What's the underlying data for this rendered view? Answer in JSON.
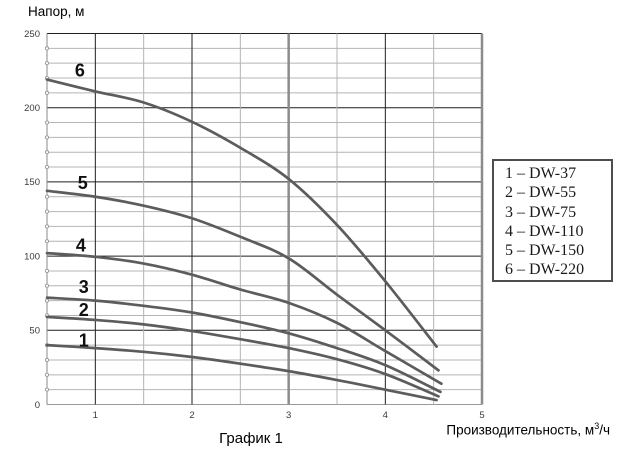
{
  "page": {
    "caption": "График 1"
  },
  "axes": {
    "y_title": "Напор, м",
    "x_title_prefix": "Производительность, м",
    "x_title_sup": "3",
    "x_title_suffix": "/ч"
  },
  "legend": {
    "items": [
      {
        "text": "1 – DW-37"
      },
      {
        "text": "2 – DW-55"
      },
      {
        "text": "3 – DW-75"
      },
      {
        "text": "4 – DW-110"
      },
      {
        "text": "5 – DW-150"
      },
      {
        "text": "6 – DW-220"
      }
    ]
  },
  "chart_data": {
    "type": "line",
    "title": "График 1",
    "xlabel": "Производительность, м³/ч",
    "ylabel": "Напор, м",
    "xlim": [
      0.5,
      5
    ],
    "ylim": [
      0,
      250
    ],
    "x_major_ticks": [
      1,
      2,
      3,
      4,
      5
    ],
    "x_minor_step": 0.5,
    "y_major_step": 50,
    "y_minor_step": 10,
    "grid": true,
    "legend_position": "right-outside",
    "emphasized_vlines": [
      3,
      5
    ],
    "curve_color": "#5c5c5c",
    "series": [
      {
        "label": "1",
        "name": "DW-37",
        "label_at": [
          0.88,
          43.5
        ],
        "points": [
          [
            0.5,
            40
          ],
          [
            1,
            38
          ],
          [
            1.5,
            35.5
          ],
          [
            2,
            32
          ],
          [
            2.5,
            27.5
          ],
          [
            3,
            22.5
          ],
          [
            3.5,
            16.5
          ],
          [
            4,
            10
          ],
          [
            4.53,
            3
          ]
        ]
      },
      {
        "label": "2",
        "name": "DW-55",
        "label_at": [
          0.88,
          64
        ],
        "points": [
          [
            0.5,
            59
          ],
          [
            1,
            57
          ],
          [
            1.5,
            54
          ],
          [
            2,
            49.5
          ],
          [
            2.5,
            44
          ],
          [
            3,
            38
          ],
          [
            3.5,
            30.5
          ],
          [
            4,
            20.5
          ],
          [
            4.55,
            5.5
          ]
        ]
      },
      {
        "label": "3",
        "name": "DW-75",
        "label_at": [
          0.88,
          79.5
        ],
        "points": [
          [
            0.5,
            72
          ],
          [
            1,
            70
          ],
          [
            1.5,
            66.5
          ],
          [
            2,
            62
          ],
          [
            2.5,
            55.5
          ],
          [
            3,
            48
          ],
          [
            3.5,
            38
          ],
          [
            4,
            26.5
          ],
          [
            4.57,
            8.5
          ]
        ]
      },
      {
        "label": "4",
        "name": "DW-110",
        "label_at": [
          0.85,
          107.5
        ],
        "points": [
          [
            0.5,
            102
          ],
          [
            1,
            99.5
          ],
          [
            1.5,
            95
          ],
          [
            2,
            87.5
          ],
          [
            2.5,
            77.5
          ],
          [
            3,
            68.5
          ],
          [
            3.5,
            55
          ],
          [
            4,
            36
          ],
          [
            4.58,
            14
          ]
        ]
      },
      {
        "label": "5",
        "name": "DW-150",
        "label_at": [
          0.87,
          149.5
        ],
        "points": [
          [
            0.5,
            144
          ],
          [
            1,
            140
          ],
          [
            1.5,
            134
          ],
          [
            2,
            125.5
          ],
          [
            2.5,
            113
          ],
          [
            3,
            98.5
          ],
          [
            3.5,
            74
          ],
          [
            4,
            50
          ],
          [
            4.55,
            23
          ]
        ]
      },
      {
        "label": "6",
        "name": "DW-220",
        "label_at": [
          0.84,
          225.5
        ],
        "points": [
          [
            0.5,
            219
          ],
          [
            1,
            211
          ],
          [
            1.5,
            203.5
          ],
          [
            2,
            190.5
          ],
          [
            2.5,
            173
          ],
          [
            3,
            152
          ],
          [
            3.5,
            121
          ],
          [
            4,
            83
          ],
          [
            4.53,
            39
          ]
        ]
      }
    ]
  }
}
